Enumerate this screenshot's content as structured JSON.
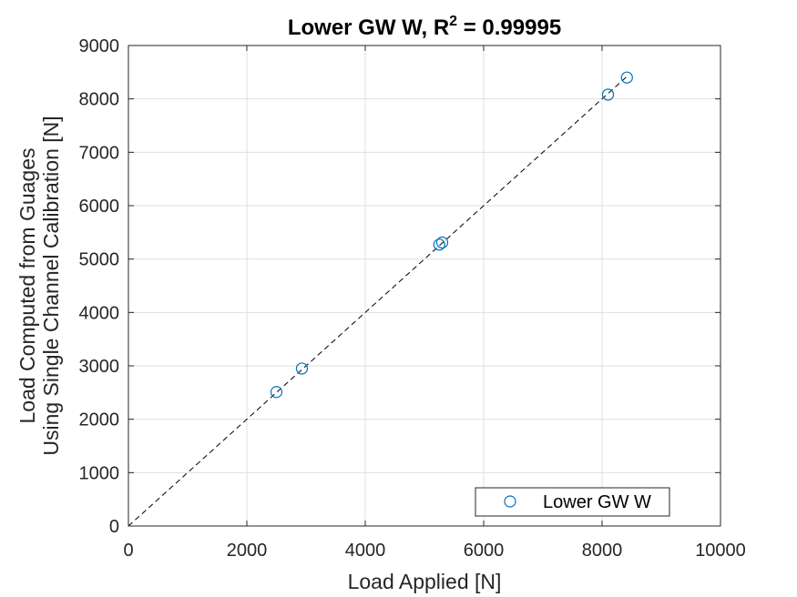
{
  "chart_data": {
    "type": "scatter",
    "title_main": "Lower GW W, R",
    "title_sup": "2",
    "title_rest": " = 0.99995",
    "xlabel": "Load Applied [N]",
    "ylabel_line1": "Load Computed from Guages",
    "ylabel_line2": "Using Single Channel Calibration [N]",
    "xlim": [
      0,
      10000
    ],
    "ylim": [
      0,
      9000
    ],
    "xticks": [
      0,
      2000,
      4000,
      6000,
      8000,
      10000
    ],
    "yticks": [
      0,
      1000,
      2000,
      3000,
      4000,
      5000,
      6000,
      7000,
      8000,
      9000
    ],
    "grid": true,
    "legend_position": "bottom-right",
    "series": [
      {
        "name": "Lower GW W",
        "marker": "circle",
        "color": "#0072BD",
        "points": [
          {
            "x": 2500,
            "y": 2510
          },
          {
            "x": 2930,
            "y": 2950
          },
          {
            "x": 5250,
            "y": 5270
          },
          {
            "x": 5300,
            "y": 5310
          },
          {
            "x": 8100,
            "y": 8080
          },
          {
            "x": 8420,
            "y": 8400
          }
        ]
      }
    ],
    "reference_line": {
      "style": "dashed",
      "color": "#000000",
      "points": [
        {
          "x": 0,
          "y": 0
        },
        {
          "x": 8420,
          "y": 8420
        }
      ]
    }
  }
}
